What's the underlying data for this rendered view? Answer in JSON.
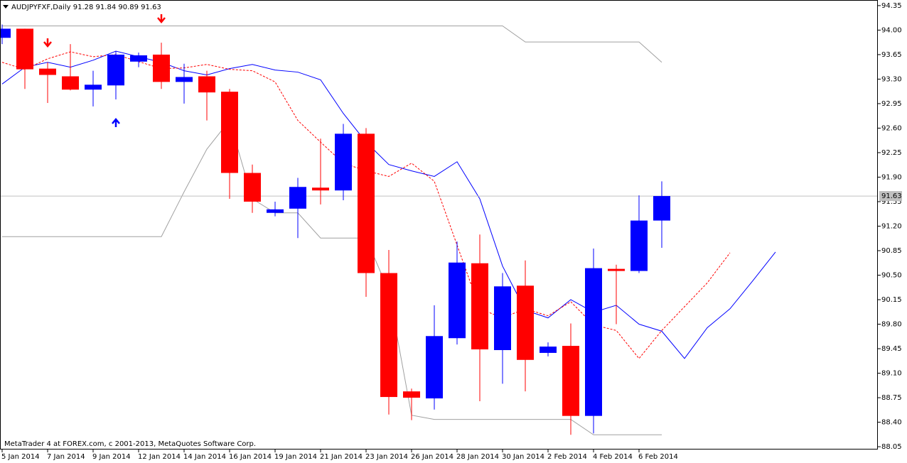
{
  "chart_data": {
    "type": "candlestick",
    "title": "AUDJPYFXF,Daily  91.28 91.84 90.89 91.63",
    "footer": "MetaTrader 4 at FOREX.com, c 2001-2013, MetaQuotes Software Corp.",
    "categories": [
      "5 Jan 2014",
      null,
      "7 Jan 2014",
      null,
      "9 Jan 2014",
      null,
      "12 Jan 2014",
      null,
      "14 Jan 2014",
      null,
      "16 Jan 2014",
      null,
      "19 Jan 2014",
      null,
      "21 Jan 2014",
      null,
      "23 Jan 2014",
      null,
      "26 Jan 2014",
      null,
      "28 Jan 2014",
      null,
      "30 Jan 2014",
      null,
      "2 Feb 2014",
      null,
      "4 Feb 2014",
      null,
      "6 Feb 2014",
      null,
      null,
      null,
      null,
      null,
      null
    ],
    "open": [
      93.89,
      94.02,
      93.45,
      93.34,
      93.15,
      93.21,
      93.55,
      93.65,
      93.26,
      93.34,
      93.12,
      91.96,
      91.39,
      91.45,
      91.75,
      91.71,
      92.52,
      90.53,
      88.84,
      88.74,
      89.6,
      90.67,
      89.43,
      90.35,
      89.39,
      89.49,
      88.49,
      90.59,
      90.56,
      91.28,
      null,
      null,
      null,
      null,
      null
    ],
    "high": [
      94.08,
      94.02,
      93.54,
      93.8,
      93.42,
      93.7,
      93.68,
      93.82,
      93.52,
      93.42,
      93.16,
      92.08,
      91.55,
      91.89,
      92.45,
      92.66,
      92.6,
      90.86,
      88.88,
      90.07,
      90.98,
      91.08,
      90.53,
      90.71,
      89.54,
      89.81,
      90.88,
      90.65,
      91.64,
      91.84,
      null,
      null,
      null,
      null,
      null
    ],
    "low": [
      93.8,
      93.16,
      92.96,
      93.14,
      92.91,
      93.01,
      93.47,
      93.16,
      92.95,
      92.71,
      91.59,
      91.39,
      91.34,
      91.03,
      91.51,
      91.57,
      90.19,
      88.51,
      88.43,
      88.58,
      89.51,
      88.7,
      88.95,
      88.84,
      89.34,
      88.22,
      88.24,
      89.8,
      90.53,
      90.89,
      null,
      null,
      null,
      null,
      null
    ],
    "close": [
      94.02,
      93.44,
      93.36,
      93.15,
      93.22,
      93.65,
      93.64,
      93.26,
      93.33,
      93.11,
      91.96,
      91.55,
      91.44,
      91.76,
      91.71,
      92.52,
      90.53,
      88.76,
      88.75,
      89.63,
      90.68,
      89.44,
      90.34,
      89.29,
      89.48,
      88.49,
      90.6,
      90.56,
      91.28,
      91.63,
      null,
      null,
      null,
      null,
      null
    ],
    "up_color": "#0000ff",
    "down_color": "#ff0000",
    "lines": [
      {
        "color": "#a0a0a0",
        "dashed": false,
        "values": [
          94.06,
          94.06,
          94.06,
          94.06,
          94.06,
          94.06,
          94.06,
          94.06,
          94.06,
          94.06,
          94.06,
          94.06,
          94.06,
          94.06,
          94.06,
          94.06,
          94.06,
          94.06,
          94.06,
          94.06,
          94.06,
          94.06,
          94.06,
          93.83,
          93.83,
          93.83,
          93.83,
          93.83,
          93.83,
          93.54,
          null,
          null,
          null,
          null,
          null
        ]
      },
      {
        "color": "#a0a0a0",
        "dashed": false,
        "values": [
          91.05,
          91.05,
          91.05,
          91.05,
          91.05,
          91.05,
          91.05,
          91.05,
          91.69,
          92.3,
          92.71,
          91.59,
          91.39,
          91.39,
          91.03,
          91.03,
          91.03,
          90.27,
          88.5,
          88.44,
          88.44,
          88.44,
          88.44,
          88.44,
          88.44,
          88.44,
          88.22,
          88.22,
          88.22,
          88.22,
          null,
          null,
          null,
          null,
          null
        ]
      },
      {
        "color": "#0000ff",
        "dashed": false,
        "values": [
          93.23,
          93.47,
          93.54,
          93.47,
          93.57,
          93.7,
          93.62,
          93.54,
          93.42,
          93.36,
          93.45,
          93.51,
          93.43,
          93.4,
          93.29,
          92.81,
          92.4,
          92.08,
          91.99,
          91.91,
          92.12,
          91.59,
          90.63,
          90.0,
          89.89,
          90.15,
          89.97,
          90.07,
          89.8,
          89.7,
          89.31,
          89.75,
          90.02,
          90.42,
          90.83
        ]
      },
      {
        "color": "#ff0000",
        "dashed": true,
        "values": [
          93.54,
          93.44,
          93.59,
          93.69,
          93.62,
          93.65,
          93.55,
          93.45,
          93.46,
          93.51,
          93.44,
          93.42,
          93.26,
          92.71,
          92.4,
          92.1,
          91.99,
          91.91,
          92.1,
          91.84,
          90.93,
          90.02,
          89.89,
          90.02,
          89.92,
          90.12,
          89.79,
          89.71,
          89.31,
          89.71,
          90.05,
          90.39,
          90.82,
          null,
          null
        ]
      }
    ],
    "last_price": 91.63,
    "ylim": [
      88.01,
      94.43
    ],
    "yticks": [
      94.35,
      {
        "value": 94.0,
        "label": "94.00"
      },
      93.65,
      {
        "value": 93.3,
        "label": "93.30"
      },
      92.95,
      {
        "value": 92.6,
        "label": "92.60"
      },
      92.25,
      {
        "value": 91.9,
        "label": "91.90"
      },
      91.55,
      {
        "value": 91.2,
        "label": "91.20"
      },
      90.85,
      {
        "value": 90.5,
        "label": "90.50"
      },
      90.15,
      {
        "value": 89.8,
        "label": "89.80"
      },
      89.45,
      {
        "value": 89.1,
        "label": "89.10"
      },
      88.75,
      {
        "value": 88.4,
        "label": "88.40"
      },
      88.05
    ]
  }
}
